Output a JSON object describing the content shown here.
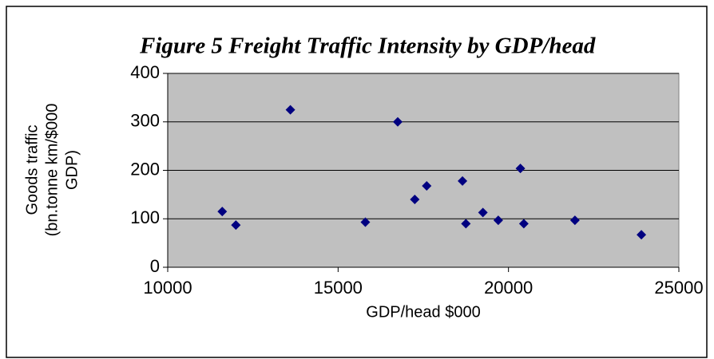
{
  "chart_data": {
    "type": "scatter",
    "title": "Figure 5 Freight Traffic Intensity by GDP/head",
    "xlabel": "GDP/head $000",
    "ylabel": [
      "Goods traffic",
      "(bn.tonne km/$000",
      "GDP)"
    ],
    "x": [
      11600,
      12000,
      13600,
      15800,
      16750,
      17250,
      17600,
      18650,
      18750,
      19250,
      19700,
      20350,
      20450,
      21950,
      23900
    ],
    "values": [
      115,
      87,
      325,
      93,
      300,
      140,
      168,
      178,
      90,
      113,
      97,
      204,
      90,
      97,
      67
    ],
    "color": "#000080",
    "xlim": [
      10000,
      25000
    ],
    "xticks": [
      10000,
      15000,
      20000,
      25000
    ],
    "ylim": [
      0,
      400
    ],
    "yticks": [
      0,
      100,
      200,
      300,
      400
    ],
    "grid": true
  }
}
